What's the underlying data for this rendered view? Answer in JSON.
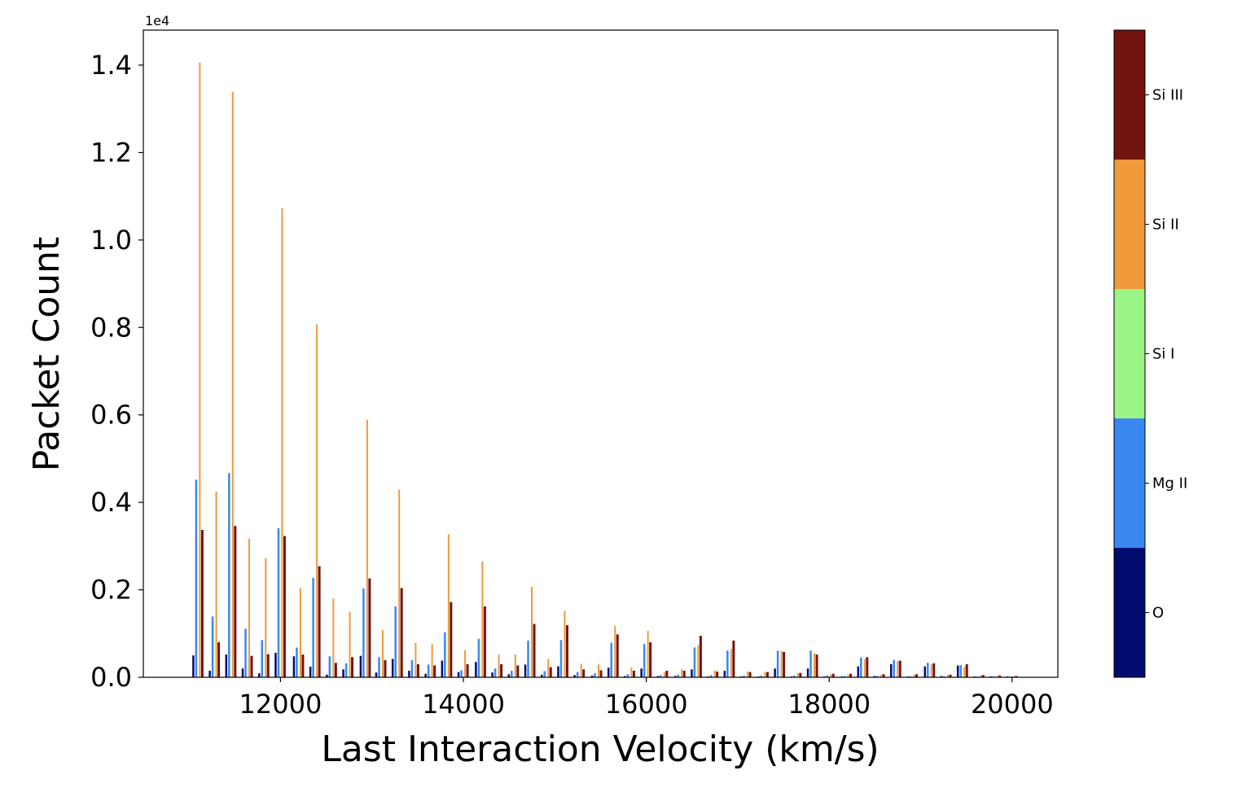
{
  "chart_data": {
    "type": "bar",
    "title": "",
    "xlabel": "Last Interaction Velocity (km/s)",
    "ylabel": "Packet Count",
    "y_offset_label": "1e4",
    "xlim": [
      10500,
      20500
    ],
    "ylim": [
      0,
      14800
    ],
    "x_ticks": [
      12000,
      14000,
      16000,
      18000,
      20000
    ],
    "x_tick_labels": [
      "12000",
      "14000",
      "16000",
      "18000",
      "20000"
    ],
    "y_ticks": [
      0,
      2000,
      4000,
      6000,
      8000,
      10000,
      12000,
      14000
    ],
    "y_tick_labels": [
      "0.0",
      "0.2",
      "0.4",
      "0.6",
      "0.8",
      "1.0",
      "1.2",
      "1.4"
    ],
    "grid": false,
    "legend": "colorbar-right",
    "colorbar": {
      "labels": [
        "O",
        "Mg II",
        "Si I",
        "Si II",
        "Si III"
      ],
      "colors": [
        "#000c6e",
        "#3a87f2",
        "#9bf585",
        "#f09a3c",
        "#731410"
      ]
    },
    "x": [
      11100,
      11280,
      11460,
      11640,
      11820,
      12000,
      12200,
      12380,
      12560,
      12740,
      12930,
      13100,
      13280,
      13460,
      13640,
      13820,
      14000,
      14190,
      14370,
      14550,
      14730,
      14910,
      15090,
      15270,
      15460,
      15640,
      15820,
      16000,
      16180,
      16370,
      16550,
      16730,
      16910,
      17090,
      17280,
      17460,
      17640,
      17820,
      18000,
      18190,
      18370,
      18550,
      18730,
      18910,
      19100,
      19280,
      19460,
      19640,
      19820,
      20000
    ],
    "series": [
      {
        "name": "O",
        "values": [
          500,
          150,
          520,
          200,
          90,
          560,
          480,
          240,
          60,
          180,
          490,
          110,
          420,
          150,
          80,
          380,
          120,
          350,
          110,
          70,
          290,
          60,
          250,
          50,
          40,
          220,
          30,
          200,
          30,
          30,
          180,
          20,
          150,
          20,
          20,
          200,
          20,
          200,
          20,
          20,
          250,
          30,
          300,
          20,
          250,
          30,
          270,
          20,
          20,
          20
        ]
      },
      {
        "name": "Mg II",
        "values": [
          4520,
          1390,
          4670,
          1110,
          850,
          3410,
          680,
          2270,
          480,
          320,
          2030,
          460,
          1620,
          390,
          290,
          1030,
          160,
          880,
          200,
          150,
          840,
          140,
          850,
          120,
          90,
          790,
          70,
          760,
          50,
          60,
          680,
          50,
          610,
          40,
          40,
          610,
          40,
          610,
          40,
          30,
          450,
          30,
          400,
          20,
          330,
          20,
          280,
          20,
          20,
          20
        ]
      },
      {
        "name": "Si I",
        "values": [
          0,
          0,
          0,
          0,
          0,
          0,
          0,
          0,
          0,
          0,
          0,
          0,
          0,
          0,
          0,
          0,
          0,
          0,
          0,
          0,
          0,
          0,
          0,
          0,
          0,
          0,
          0,
          0,
          0,
          0,
          0,
          0,
          0,
          0,
          0,
          0,
          0,
          0,
          0,
          0,
          0,
          0,
          0,
          0,
          0,
          0,
          0,
          0,
          0,
          0
        ]
      },
      {
        "name": "Si II",
        "values": [
          14060,
          4250,
          13390,
          3170,
          2730,
          10730,
          2040,
          8070,
          1800,
          1500,
          5890,
          1080,
          4290,
          790,
          760,
          3270,
          620,
          2650,
          520,
          520,
          2070,
          420,
          1520,
          310,
          300,
          1180,
          230,
          1060,
          120,
          180,
          740,
          160,
          650,
          130,
          120,
          600,
          100,
          550,
          70,
          60,
          420,
          60,
          370,
          60,
          300,
          60,
          240,
          50,
          30,
          30
        ]
      },
      {
        "name": "Si III",
        "values": [
          3370,
          800,
          3460,
          490,
          530,
          3230,
          520,
          2540,
          330,
          460,
          2260,
          390,
          2040,
          300,
          270,
          1720,
          300,
          1620,
          300,
          270,
          1220,
          230,
          1190,
          180,
          160,
          980,
          150,
          800,
          150,
          150,
          950,
          130,
          840,
          120,
          120,
          580,
          100,
          520,
          80,
          80,
          460,
          70,
          380,
          70,
          320,
          60,
          300,
          50,
          40,
          30
        ]
      }
    ]
  }
}
